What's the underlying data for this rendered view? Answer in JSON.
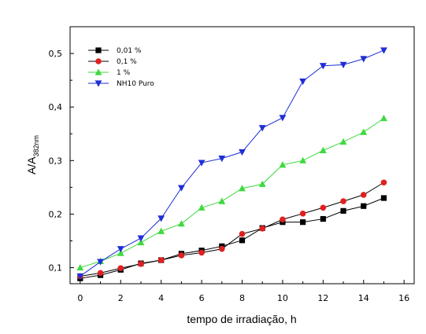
{
  "chart_data": {
    "type": "line",
    "xlabel": "tempo de irradiação, h",
    "ylabel_main": "A/A",
    "ylabel_sub": "382nm",
    "xlim": [
      -0.5,
      16.5
    ],
    "ylim": [
      0.07,
      0.55
    ],
    "xticks": [
      0,
      2,
      4,
      6,
      8,
      10,
      12,
      14,
      16
    ],
    "xtick_labels": [
      "0",
      "2",
      "4",
      "6",
      "8",
      "10",
      "12",
      "14",
      "16"
    ],
    "yticks": [
      0.1,
      0.2,
      0.3,
      0.4,
      0.5
    ],
    "ytick_labels": [
      "0,1",
      "0,2",
      "0,3",
      "0,4",
      "0,5"
    ],
    "legend_position": "top-left",
    "grid": false,
    "x": [
      0,
      1,
      2,
      3,
      4,
      5,
      6,
      7,
      8,
      9,
      10,
      11,
      12,
      13,
      14,
      15
    ],
    "series": [
      {
        "name": "0,01 %",
        "marker": "square",
        "color": "#000000",
        "line_color": "#000000",
        "values": [
          0.08,
          0.086,
          0.096,
          0.108,
          0.114,
          0.126,
          0.132,
          0.14,
          0.151,
          0.174,
          0.185,
          0.185,
          0.191,
          0.206,
          0.215,
          0.23
        ]
      },
      {
        "name": "0,1 %",
        "marker": "circle",
        "color": "#e02020",
        "line_color": "#000000",
        "values": [
          0.084,
          0.09,
          0.099,
          0.107,
          0.114,
          0.123,
          0.128,
          0.135,
          0.163,
          0.173,
          0.19,
          0.201,
          0.212,
          0.224,
          0.236,
          0.259
        ]
      },
      {
        "name": "1 %",
        "marker": "triangle-up",
        "color": "#3ed93e",
        "line_color": "#3ed93e",
        "values": [
          0.1,
          0.112,
          0.127,
          0.147,
          0.168,
          0.182,
          0.212,
          0.224,
          0.248,
          0.256,
          0.292,
          0.3,
          0.319,
          0.335,
          0.353,
          0.379
        ]
      },
      {
        "name": "NH10 Puro",
        "marker": "triangle-down",
        "color": "#1e2fd6",
        "line_color": "#1e2fd6",
        "values": [
          0.084,
          0.111,
          0.135,
          0.155,
          0.192,
          0.249,
          0.296,
          0.304,
          0.316,
          0.361,
          0.38,
          0.448,
          0.477,
          0.479,
          0.49,
          0.506
        ]
      }
    ]
  }
}
